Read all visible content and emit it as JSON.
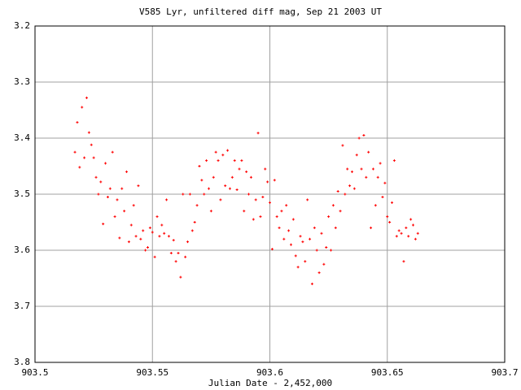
{
  "chart_data": {
    "type": "scatter",
    "title": "V585 Lyr, unfiltered diff mag, Sep 21 2003 UT",
    "x_label": "Julian Date - 2,452,000",
    "xlim": [
      903.5,
      903.7
    ],
    "xticks": [
      903.5,
      903.55,
      903.6,
      903.65,
      903.7
    ],
    "ylim": [
      3.8,
      3.2
    ],
    "yticks": [
      3.2,
      3.3,
      3.4,
      3.5,
      3.6,
      3.7,
      3.8
    ],
    "grid": true,
    "grid_color": "#a0a0a0",
    "color": "#ff0000",
    "x": [
      903.517,
      903.518,
      903.519,
      903.52,
      903.521,
      903.522,
      903.523,
      903.524,
      903.525,
      903.526,
      903.527,
      903.528,
      903.529,
      903.53,
      903.531,
      903.532,
      903.533,
      903.534,
      903.535,
      903.536,
      903.537,
      903.538,
      903.539,
      903.54,
      903.541,
      903.542,
      903.543,
      903.544,
      903.545,
      903.546,
      903.547,
      903.548,
      903.549,
      903.55,
      903.551,
      903.552,
      903.553,
      903.554,
      903.555,
      903.556,
      903.557,
      903.558,
      903.559,
      903.56,
      903.561,
      903.562,
      903.563,
      903.564,
      903.565,
      903.566,
      903.567,
      903.568,
      903.569,
      903.57,
      903.571,
      903.572,
      903.573,
      903.574,
      903.575,
      903.576,
      903.577,
      903.578,
      903.579,
      903.58,
      903.581,
      903.582,
      903.583,
      903.584,
      903.585,
      903.586,
      903.587,
      903.588,
      903.589,
      903.59,
      903.591,
      903.592,
      903.593,
      903.594,
      903.595,
      903.596,
      903.597,
      903.598,
      903.599,
      903.6,
      903.601,
      903.602,
      903.603,
      903.604,
      903.605,
      903.606,
      903.607,
      903.608,
      903.609,
      903.61,
      903.611,
      903.612,
      903.613,
      903.614,
      903.615,
      903.616,
      903.617,
      903.618,
      903.619,
      903.62,
      903.621,
      903.622,
      903.623,
      903.624,
      903.625,
      903.626,
      903.627,
      903.628,
      903.629,
      903.63,
      903.631,
      903.632,
      903.633,
      903.634,
      903.635,
      903.636,
      903.637,
      903.638,
      903.639,
      903.64,
      903.641,
      903.642,
      903.643,
      903.644,
      903.645,
      903.646,
      903.647,
      903.648,
      903.649,
      903.65,
      903.651,
      903.652,
      903.653,
      903.654,
      903.655,
      903.656,
      903.657,
      903.658,
      903.659,
      903.66,
      903.661,
      903.662,
      903.663
    ],
    "values": [
      3.425,
      3.372,
      3.452,
      3.345,
      3.435,
      3.328,
      3.39,
      3.412,
      3.435,
      3.47,
      3.5,
      3.478,
      3.553,
      3.445,
      3.505,
      3.49,
      3.425,
      3.54,
      3.51,
      3.578,
      3.49,
      3.53,
      3.46,
      3.585,
      3.555,
      3.52,
      3.575,
      3.485,
      3.58,
      3.565,
      3.6,
      3.595,
      3.56,
      3.568,
      3.612,
      3.54,
      3.575,
      3.555,
      3.57,
      3.51,
      3.575,
      3.605,
      3.582,
      3.62,
      3.605,
      3.648,
      3.5,
      3.612,
      3.585,
      3.5,
      3.565,
      3.55,
      3.52,
      3.45,
      3.475,
      3.5,
      3.44,
      3.49,
      3.53,
      3.47,
      3.425,
      3.44,
      3.51,
      3.43,
      3.485,
      3.422,
      3.49,
      3.47,
      3.44,
      3.492,
      3.455,
      3.44,
      3.53,
      3.46,
      3.5,
      3.47,
      3.545,
      3.51,
      3.391,
      3.54,
      3.505,
      3.455,
      3.478,
      3.515,
      3.598,
      3.475,
      3.54,
      3.56,
      3.53,
      3.58,
      3.52,
      3.565,
      3.59,
      3.545,
      3.61,
      3.63,
      3.575,
      3.585,
      3.62,
      3.51,
      3.58,
      3.66,
      3.56,
      3.6,
      3.64,
      3.57,
      3.625,
      3.595,
      3.54,
      3.6,
      3.52,
      3.56,
      3.495,
      3.53,
      3.413,
      3.5,
      3.455,
      3.485,
      3.46,
      3.49,
      3.43,
      3.4,
      3.455,
      3.395,
      3.47,
      3.425,
      3.56,
      3.455,
      3.52,
      3.47,
      3.445,
      3.505,
      3.48,
      3.54,
      3.55,
      3.515,
      3.44,
      3.575,
      3.565,
      3.57,
      3.62,
      3.56,
      3.575,
      3.545,
      3.555,
      3.58,
      3.57
    ]
  }
}
